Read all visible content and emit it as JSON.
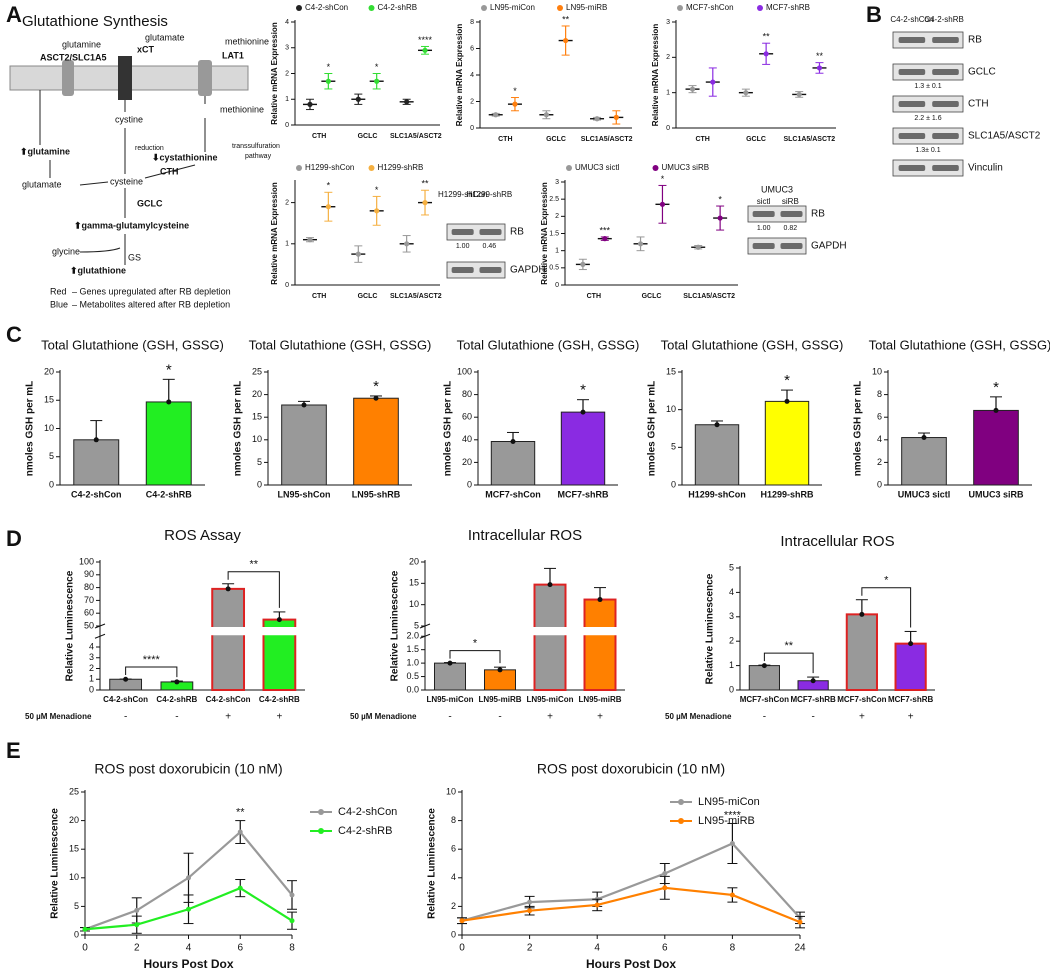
{
  "panel_labels": [
    "A",
    "B",
    "C",
    "D",
    "E"
  ],
  "diagram": {
    "title": "Glutathione Synthesis",
    "labels": [
      {
        "text": "glutamine"
      },
      {
        "text": "ASCT2/SLC1A5",
        "color": "#e02020"
      },
      {
        "text": "glutamate"
      },
      {
        "text": "xCT",
        "color": "#e02020"
      },
      {
        "text": "methionine"
      },
      {
        "text": "LAT1",
        "color": "#e02020"
      },
      {
        "text": "cystine"
      },
      {
        "text": "reduction"
      },
      {
        "text": "methionine"
      },
      {
        "text": "transsulfuration"
      },
      {
        "text": "pathway"
      },
      {
        "text": "⬆glutamine",
        "color": "#2040e0"
      },
      {
        "text": "⬇cystathionine",
        "color": "#2040e0"
      },
      {
        "text": "glutamate"
      },
      {
        "text": "cysteine"
      },
      {
        "text": "CTH",
        "color": "#e02020"
      },
      {
        "text": "GCLC",
        "color": "#e02020"
      },
      {
        "text": "⬆gamma-glutamylcysteine",
        "color": "#2040e0"
      },
      {
        "text": "glycine"
      },
      {
        "text": "GS"
      },
      {
        "text": "⬆glutathione",
        "color": "#2040e0"
      }
    ],
    "legend": [
      {
        "key": "Red",
        "color": "#e02020",
        "text": " – Genes upregulated after RB depletion"
      },
      {
        "key": "Blue",
        "color": "#2040e0",
        "text": " – Metabolites altered after RB depletion"
      }
    ]
  },
  "blots": [
    {
      "lanes": [
        "C4-2-shCon",
        "C4-2-shRB"
      ],
      "rows": [
        {
          "label": "RB"
        },
        {
          "label": "GCLC",
          "ratio": "1.3 ± 0.1"
        },
        {
          "label": "CTH",
          "ratio": "2.2 ± 1.6"
        },
        {
          "label": "SLC1A5/ASCT2",
          "ratio": "1.3± 0.1"
        },
        {
          "label": "Vinculin"
        }
      ]
    },
    {
      "lanes": [
        "H1299-shCon",
        "H1299-shRB"
      ],
      "quant": [
        "1.00",
        "0.46"
      ],
      "rows": [
        {
          "label": "RB"
        },
        {
          "label": "GAPDH"
        }
      ]
    },
    {
      "header": "UMUC3",
      "lanes": [
        "sictl",
        "siRB"
      ],
      "quant": [
        "1.00",
        "0.82"
      ],
      "rows": [
        {
          "label": "RB"
        },
        {
          "label": "GAPDH"
        }
      ]
    }
  ],
  "chart_data": [
    {
      "type": "dot",
      "ylabel": "Relative mRNA Expression",
      "categories": [
        "CTH",
        "GCLC",
        "SLC1A5/ASCT2"
      ],
      "series": [
        {
          "name": "C4-2-shCon",
          "color": "#222222",
          "values": [
            0.8,
            1.0,
            0.9
          ],
          "errors": [
            0.2,
            0.2,
            0.1
          ]
        },
        {
          "name": "C4-2-shRB",
          "color": "#33dd33",
          "values": [
            1.7,
            1.7,
            2.9
          ],
          "errors": [
            0.3,
            0.3,
            0.15
          ]
        }
      ],
      "significance": [
        "*",
        "*",
        "****"
      ],
      "ylim": [
        0,
        4
      ],
      "yticks": [
        0,
        1,
        2,
        3,
        4
      ]
    },
    {
      "type": "dot",
      "ylabel": "Relative mRNA Expression",
      "categories": [
        "CTH",
        "GCLC",
        "SLC1A5/ASCT2"
      ],
      "series": [
        {
          "name": "LN95-miCon",
          "color": "#999999",
          "values": [
            1.0,
            1.0,
            0.7
          ],
          "errors": [
            0.1,
            0.3,
            0.1
          ]
        },
        {
          "name": "LN95-miRB",
          "color": "#ff7f0e",
          "values": [
            1.8,
            6.6,
            0.8
          ],
          "errors": [
            0.5,
            1.1,
            0.5
          ]
        }
      ],
      "significance": [
        "*",
        "**",
        null
      ],
      "ylim": [
        0,
        8
      ],
      "yticks": [
        0,
        2,
        4,
        6,
        8
      ]
    },
    {
      "type": "dot",
      "ylabel": "Relative mRNA Expression",
      "categories": [
        "CTH",
        "GCLC",
        "SLC1A5/ASCT2"
      ],
      "series": [
        {
          "name": "MCF7-shCon",
          "color": "#999999",
          "values": [
            1.1,
            1.0,
            0.95
          ],
          "errors": [
            0.1,
            0.1,
            0.08
          ]
        },
        {
          "name": "MCF7-shRB",
          "color": "#8a2be2",
          "values": [
            1.3,
            2.1,
            1.7
          ],
          "errors": [
            0.4,
            0.3,
            0.15
          ]
        }
      ],
      "significance": [
        null,
        "**",
        "**"
      ],
      "ylim": [
        0,
        3
      ],
      "yticks": [
        0,
        1,
        2,
        3
      ]
    },
    {
      "type": "dot",
      "ylabel": "Relative mRNA Expression",
      "categories": [
        "CTH",
        "GCLC",
        "SLC1A5/ASCT2"
      ],
      "series": [
        {
          "name": "H1299-shCon",
          "color": "#999999",
          "values": [
            1.1,
            0.75,
            1.0
          ],
          "errors": [
            0.05,
            0.2,
            0.2
          ]
        },
        {
          "name": "H1299-shRB",
          "color": "#f5b041",
          "values": [
            1.9,
            1.8,
            2.0
          ],
          "errors": [
            0.35,
            0.35,
            0.3
          ]
        }
      ],
      "significance": [
        "*",
        "*",
        "**"
      ],
      "ylim": [
        0,
        2.5
      ],
      "yticks": [
        0,
        1,
        2
      ]
    },
    {
      "type": "dot",
      "ylabel": "Relative mRNA Expression",
      "categories": [
        "CTH",
        "GCLC",
        "SLC1A5/ASCT2"
      ],
      "series": [
        {
          "name": "UMUC3 sictl",
          "color": "#999999",
          "values": [
            0.6,
            1.2,
            1.1
          ],
          "errors": [
            0.15,
            0.2,
            0.05
          ]
        },
        {
          "name": "UMUC3 siRB",
          "color": "#800080",
          "values": [
            1.35,
            2.35,
            1.95
          ],
          "errors": [
            0.05,
            0.55,
            0.35
          ]
        }
      ],
      "significance": [
        "***",
        "*",
        "*"
      ],
      "ylim": [
        0,
        3
      ],
      "yticks": [
        0,
        0.5,
        1,
        1.5,
        2,
        2.5,
        3
      ]
    },
    {
      "type": "bar",
      "title": "Total Glutathione (GSH, GSSG)",
      "ylabel": "nmoles GSH per mL",
      "categories": [
        "C4-2-shCon",
        "C4-2-shRB"
      ],
      "values": [
        8.0,
        14.7
      ],
      "errors": [
        3.4,
        4.0
      ],
      "colors": [
        "#999999",
        "#22ee22"
      ],
      "significance": [
        null,
        "*"
      ],
      "ylim": [
        0,
        20
      ],
      "yticks": [
        0,
        5,
        10,
        15,
        20
      ]
    },
    {
      "type": "bar",
      "title": "Total Glutathione (GSH, GSSG)",
      "ylabel": "nmoles GSH per mL",
      "categories": [
        "LN95-shCon",
        "LN95-shRB"
      ],
      "values": [
        17.7,
        19.2
      ],
      "errors": [
        0.8,
        0.5
      ],
      "colors": [
        "#999999",
        "#ff8000"
      ],
      "significance": [
        null,
        "*"
      ],
      "ylim": [
        0,
        25
      ],
      "yticks": [
        0,
        5,
        10,
        15,
        20,
        25
      ]
    },
    {
      "type": "bar",
      "title": "Total Glutathione (GSH, GSSG)",
      "ylabel": "nmoles GSH per mL",
      "categories": [
        "MCF7-shCon",
        "MCF7-shRB"
      ],
      "values": [
        38.5,
        64.5
      ],
      "errors": [
        8,
        11
      ],
      "colors": [
        "#999999",
        "#8a2be2"
      ],
      "significance": [
        null,
        "*"
      ],
      "ylim": [
        0,
        100
      ],
      "yticks": [
        0,
        20,
        40,
        60,
        80,
        100
      ]
    },
    {
      "type": "bar",
      "title": "Total Glutathione (GSH, GSSG)",
      "ylabel": "nmoles GSH per mL",
      "categories": [
        "H1299-shCon",
        "H1299-shRB"
      ],
      "values": [
        8.0,
        11.1
      ],
      "errors": [
        0.5,
        1.5
      ],
      "colors": [
        "#999999",
        "#ffff00"
      ],
      "significance": [
        null,
        "*"
      ],
      "ylim": [
        0,
        15
      ],
      "yticks": [
        0,
        5,
        10,
        15
      ]
    },
    {
      "type": "bar",
      "title": "Total Glutathione (GSH, GSSG)",
      "ylabel": "nmoles GSH per mL",
      "categories": [
        "UMUC3 sictl",
        "UMUC3 siRB"
      ],
      "values": [
        4.2,
        6.6
      ],
      "errors": [
        0.4,
        1.2
      ],
      "colors": [
        "#999999",
        "#800080"
      ],
      "significance": [
        null,
        "*"
      ],
      "ylim": [
        0,
        10
      ],
      "yticks": [
        0,
        2,
        4,
        6,
        8,
        10
      ]
    },
    {
      "type": "bar",
      "title": "ROS Assay",
      "ylabel": "Relative Luminescence",
      "categories": [
        "C4-2-shCon",
        "C4-2-shRB",
        "C4-2-shCon",
        "C4-2-shRB"
      ],
      "values": [
        1.0,
        0.75,
        79,
        55
      ],
      "errors": [
        0.02,
        0.08,
        4,
        6
      ],
      "colors": [
        "#999999",
        "#22ee22",
        "#999999",
        "#22ee22"
      ],
      "edgecolors": [
        null,
        null,
        "#dd2222",
        "#dd2222"
      ],
      "conditions": [
        "-",
        "-",
        "+",
        "+"
      ],
      "condition_label": "50 µM Menadione",
      "significance": [
        "****",
        null,
        "**",
        null
      ],
      "ylim": [
        0,
        100
      ],
      "ybreak": [
        5,
        50
      ],
      "yticks": [
        0,
        1,
        2,
        3,
        4,
        50,
        60,
        70,
        80,
        90,
        100
      ]
    },
    {
      "type": "bar",
      "title": "Intracellular ROS",
      "ylabel": "Relative Luminescence",
      "categories": [
        "LN95-miCon",
        "LN95-miRB",
        "LN95-miCon",
        "LN95-miRB"
      ],
      "values": [
        1.0,
        0.75,
        14.7,
        11.2
      ],
      "errors": [
        0.02,
        0.1,
        3.8,
        2.8
      ],
      "colors": [
        "#999999",
        "#ff8000",
        "#999999",
        "#ff8000"
      ],
      "edgecolors": [
        null,
        null,
        "#dd2222",
        "#dd2222"
      ],
      "conditions": [
        "-",
        "-",
        "+",
        "+"
      ],
      "condition_label": "50 µM Menadione",
      "significance": [
        "*",
        null,
        null,
        null
      ],
      "ylim": [
        0,
        20
      ],
      "ybreak": [
        2,
        5
      ],
      "yticks": [
        {
          "value": 0,
          "label": "0.0"
        },
        0.5,
        {
          "value": 1,
          "label": "1.0"
        },
        1.5,
        {
          "value": 2,
          "label": "2.0"
        },
        5,
        10,
        15,
        20
      ]
    },
    {
      "type": "bar",
      "title": "Intracellular ROS",
      "ylabel": "Relative Luminescence",
      "categories": [
        "MCF7-shCon",
        "MCF7-shRB",
        "MCF7-shCon",
        "MCF7-shRB"
      ],
      "values": [
        1.0,
        0.38,
        3.1,
        1.9
      ],
      "errors": [
        0.02,
        0.15,
        0.6,
        0.5
      ],
      "colors": [
        "#999999",
        "#8a2be2",
        "#999999",
        "#8a2be2"
      ],
      "edgecolors": [
        null,
        null,
        "#dd2222",
        "#dd2222"
      ],
      "conditions": [
        "-",
        "-",
        "+",
        "+"
      ],
      "condition_label": "50 µM Menadione",
      "significance": [
        "**",
        null,
        "*",
        null
      ],
      "ylim": [
        0,
        5
      ],
      "yticks": [
        0,
        1,
        2,
        3,
        4,
        5
      ]
    },
    {
      "type": "line",
      "title": "ROS post doxorubicin (10 nM)",
      "xlabel": "Hours Post Dox",
      "ylabel": "Relative Luminescence",
      "categories": [
        "0",
        "2",
        "4",
        "6",
        "8"
      ],
      "series": [
        {
          "name": "C4-2-shCon",
          "color": "#999999",
          "values": [
            1,
            4.3,
            10,
            18,
            7
          ],
          "errors": [
            0.3,
            2.2,
            4.3,
            2,
            2.5
          ]
        },
        {
          "name": "C4-2-shRB",
          "color": "#22ee22",
          "values": [
            1,
            1.8,
            4.5,
            8.2,
            2.5
          ],
          "errors": [
            0.3,
            1.5,
            2.5,
            1.5,
            1.5
          ]
        }
      ],
      "significance": [
        null,
        null,
        null,
        "**",
        null
      ],
      "ylim": [
        0,
        25
      ],
      "yticks": [
        0,
        5,
        10,
        15,
        20,
        25
      ],
      "legend": "right"
    },
    {
      "type": "line",
      "title": "ROS post doxorubicin (10 nM)",
      "xlabel": "Hours Post Dox",
      "ylabel": "Relative Luminescence",
      "categories": [
        "0",
        "2",
        "4",
        "6",
        "8",
        "24"
      ],
      "series": [
        {
          "name": "LN95-miCon",
          "color": "#999999",
          "values": [
            1.0,
            2.3,
            2.5,
            4.3,
            6.4,
            1.2
          ],
          "errors": [
            0.2,
            0.4,
            0.5,
            0.7,
            1.4,
            0.4
          ]
        },
        {
          "name": "LN95-miRB",
          "color": "#ff8000",
          "values": [
            1.0,
            1.7,
            2.1,
            3.3,
            2.8,
            0.9
          ],
          "errors": [
            0.2,
            0.3,
            0.4,
            0.8,
            0.5,
            0.4
          ]
        }
      ],
      "significance": [
        null,
        null,
        null,
        null,
        "****",
        null
      ],
      "ylim": [
        0,
        10
      ],
      "yticks": [
        0,
        2,
        4,
        6,
        8,
        10
      ],
      "legend": "upper right"
    }
  ]
}
